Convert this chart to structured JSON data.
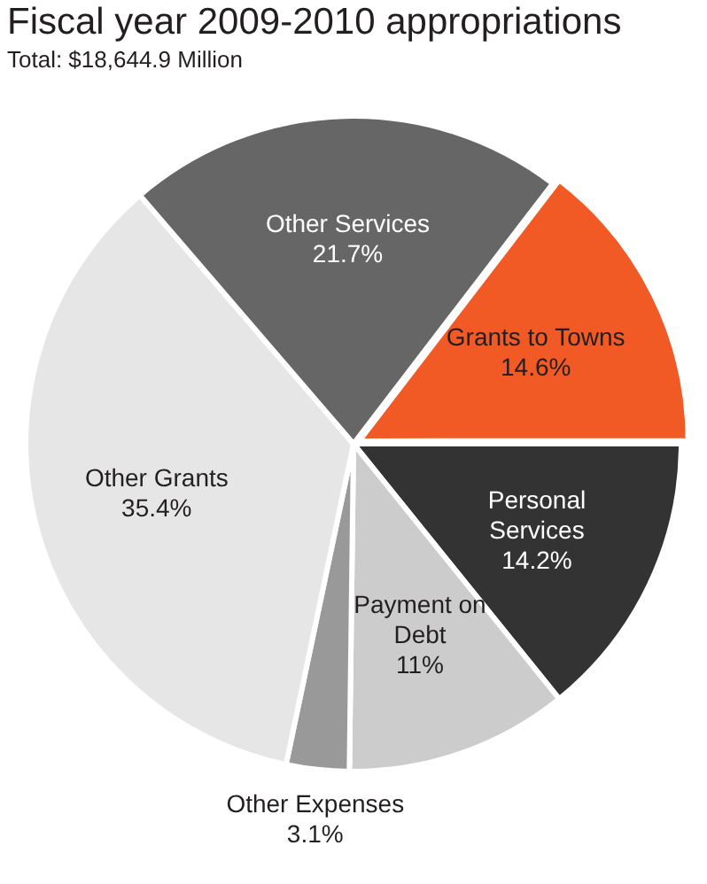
{
  "chart_data": {
    "type": "pie",
    "title": "Fiscal year 2009-2010 appropriations",
    "subtitle": "Total: $18,644.9 Million",
    "categories": [
      "Grants to Towns",
      "Personal Services",
      "Payment on Debt",
      "Other Expenses",
      "Other Grants",
      "Other Services"
    ],
    "values": [
      14.6,
      14.2,
      11,
      3.1,
      35.4,
      21.7
    ],
    "value_labels": [
      "14.6%",
      "14.2%",
      "11%",
      "3.1%",
      "35.4%",
      "21.7%"
    ],
    "colors": [
      "#f15a24",
      "#333333",
      "#cccccc",
      "#999999",
      "#e6e6e6",
      "#666666"
    ],
    "legend": false
  }
}
